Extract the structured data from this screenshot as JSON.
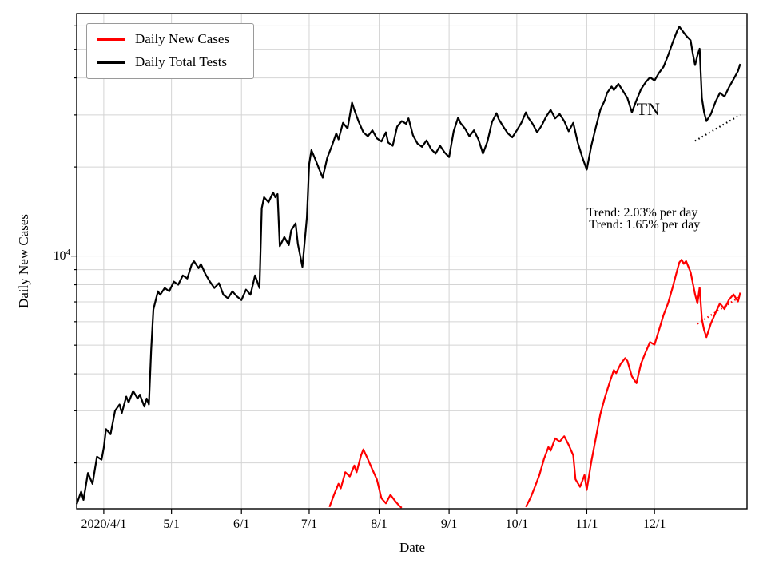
{
  "figure": {
    "ylabel": "Daily New Cases",
    "xlabel": "Date",
    "y_tick": {
      "base": "10",
      "exp": "4"
    }
  },
  "chart_data": {
    "type": "line",
    "title": "",
    "xlabel": "Date",
    "ylabel": "Daily New Cases",
    "y_scale": "log",
    "grid": true,
    "legend_position": "upper left",
    "ylim": [
      1400,
      66000
    ],
    "x_range": [
      "2020-03-20",
      "2021-01-11"
    ],
    "x_ticks": [
      {
        "date": "2020-04-01",
        "label": "2020/4/1"
      },
      {
        "date": "2020-05-01",
        "label": "5/1"
      },
      {
        "date": "2020-06-01",
        "label": "6/1"
      },
      {
        "date": "2020-07-01",
        "label": "7/1"
      },
      {
        "date": "2020-08-01",
        "label": "8/1"
      },
      {
        "date": "2020-09-01",
        "label": "9/1"
      },
      {
        "date": "2020-10-01",
        "label": "10/1"
      },
      {
        "date": "2020-11-01",
        "label": "11/1"
      },
      {
        "date": "2020-12-01",
        "label": "12/1"
      }
    ],
    "y_gridlines": [
      2000,
      3000,
      4000,
      5000,
      6000,
      7000,
      8000,
      9000,
      10000,
      20000,
      30000,
      40000,
      50000,
      60000
    ],
    "series": [
      {
        "name": "Daily New Cases",
        "color": "#ff0000",
        "points": [
          [
            "2020-07-10",
            1420
          ],
          [
            "2020-07-12",
            1560
          ],
          [
            "2020-07-14",
            1700
          ],
          [
            "2020-07-15",
            1640
          ],
          [
            "2020-07-17",
            1860
          ],
          [
            "2020-07-19",
            1800
          ],
          [
            "2020-07-21",
            1960
          ],
          [
            "2020-07-22",
            1860
          ],
          [
            "2020-07-24",
            2120
          ],
          [
            "2020-07-25",
            2220
          ],
          [
            "2020-07-27",
            2060
          ],
          [
            "2020-07-29",
            1900
          ],
          [
            "2020-07-31",
            1760
          ],
          [
            "2020-08-02",
            1520
          ],
          [
            "2020-08-04",
            1460
          ],
          [
            "2020-08-06",
            1560
          ],
          [
            "2020-08-08",
            1490
          ],
          [
            "2020-08-10",
            1430
          ],
          [
            "2020-08-11",
            1410
          ],
          [
            "2020-08-12",
            null
          ],
          [
            "2020-10-05",
            1420
          ],
          [
            "2020-10-07",
            1520
          ],
          [
            "2020-10-09",
            1660
          ],
          [
            "2020-10-11",
            1820
          ],
          [
            "2020-10-13",
            2060
          ],
          [
            "2020-10-15",
            2260
          ],
          [
            "2020-10-16",
            2200
          ],
          [
            "2020-10-18",
            2420
          ],
          [
            "2020-10-20",
            2360
          ],
          [
            "2020-10-22",
            2460
          ],
          [
            "2020-10-24",
            2300
          ],
          [
            "2020-10-26",
            2120
          ],
          [
            "2020-10-27",
            1760
          ],
          [
            "2020-10-29",
            1660
          ],
          [
            "2020-10-31",
            1820
          ],
          [
            "2020-11-01",
            1620
          ],
          [
            "2020-11-03",
            2020
          ],
          [
            "2020-11-05",
            2420
          ],
          [
            "2020-11-07",
            2920
          ],
          [
            "2020-11-09",
            3320
          ],
          [
            "2020-11-11",
            3720
          ],
          [
            "2020-11-13",
            4120
          ],
          [
            "2020-11-14",
            4020
          ],
          [
            "2020-11-16",
            4320
          ],
          [
            "2020-11-18",
            4520
          ],
          [
            "2020-11-19",
            4420
          ],
          [
            "2020-11-21",
            3920
          ],
          [
            "2020-11-23",
            3720
          ],
          [
            "2020-11-25",
            4320
          ],
          [
            "2020-11-27",
            4720
          ],
          [
            "2020-11-29",
            5120
          ],
          [
            "2020-12-01",
            5020
          ],
          [
            "2020-12-03",
            5620
          ],
          [
            "2020-12-05",
            6320
          ],
          [
            "2020-12-07",
            6920
          ],
          [
            "2020-12-09",
            7820
          ],
          [
            "2020-12-11",
            8920
          ],
          [
            "2020-12-12",
            9520
          ],
          [
            "2020-12-13",
            9720
          ],
          [
            "2020-12-14",
            9420
          ],
          [
            "2020-12-15",
            9620
          ],
          [
            "2020-12-17",
            8820
          ],
          [
            "2020-12-19",
            7420
          ],
          [
            "2020-12-20",
            6920
          ],
          [
            "2020-12-21",
            7820
          ],
          [
            "2020-12-22",
            6120
          ],
          [
            "2020-12-23",
            5620
          ],
          [
            "2020-12-24",
            5320
          ],
          [
            "2020-12-26",
            5920
          ],
          [
            "2020-12-28",
            6420
          ],
          [
            "2020-12-30",
            6920
          ],
          [
            "2021-01-01",
            6620
          ],
          [
            "2021-01-03",
            7120
          ],
          [
            "2021-01-05",
            7420
          ],
          [
            "2021-01-07",
            7020
          ],
          [
            "2021-01-08",
            7520
          ]
        ]
      },
      {
        "name": "Daily Total Tests",
        "color": "#000000",
        "points": [
          [
            "2020-03-20",
            1450
          ],
          [
            "2020-03-22",
            1600
          ],
          [
            "2020-03-23",
            1500
          ],
          [
            "2020-03-25",
            1850
          ],
          [
            "2020-03-27",
            1700
          ],
          [
            "2020-03-29",
            2100
          ],
          [
            "2020-03-31",
            2050
          ],
          [
            "2020-04-01",
            2250
          ],
          [
            "2020-04-02",
            2600
          ],
          [
            "2020-04-04",
            2500
          ],
          [
            "2020-04-06",
            3000
          ],
          [
            "2020-04-08",
            3150
          ],
          [
            "2020-04-09",
            2950
          ],
          [
            "2020-04-11",
            3350
          ],
          [
            "2020-04-12",
            3200
          ],
          [
            "2020-04-14",
            3500
          ],
          [
            "2020-04-16",
            3300
          ],
          [
            "2020-04-17",
            3400
          ],
          [
            "2020-04-19",
            3100
          ],
          [
            "2020-04-20",
            3300
          ],
          [
            "2020-04-21",
            3150
          ],
          [
            "2020-04-22",
            4800
          ],
          [
            "2020-04-23",
            6600
          ],
          [
            "2020-04-25",
            7600
          ],
          [
            "2020-04-26",
            7400
          ],
          [
            "2020-04-28",
            7800
          ],
          [
            "2020-04-30",
            7600
          ],
          [
            "2020-05-02",
            8200
          ],
          [
            "2020-05-04",
            8000
          ],
          [
            "2020-05-06",
            8600
          ],
          [
            "2020-05-08",
            8400
          ],
          [
            "2020-05-10",
            9400
          ],
          [
            "2020-05-11",
            9600
          ],
          [
            "2020-05-13",
            9100
          ],
          [
            "2020-05-14",
            9400
          ],
          [
            "2020-05-16",
            8700
          ],
          [
            "2020-05-18",
            8200
          ],
          [
            "2020-05-20",
            7800
          ],
          [
            "2020-05-22",
            8100
          ],
          [
            "2020-05-24",
            7400
          ],
          [
            "2020-05-26",
            7200
          ],
          [
            "2020-05-28",
            7600
          ],
          [
            "2020-05-30",
            7300
          ],
          [
            "2020-06-01",
            7100
          ],
          [
            "2020-06-03",
            7700
          ],
          [
            "2020-06-05",
            7400
          ],
          [
            "2020-06-07",
            8600
          ],
          [
            "2020-06-08",
            8200
          ],
          [
            "2020-06-09",
            7800
          ],
          [
            "2020-06-10",
            14500
          ],
          [
            "2020-06-11",
            15800
          ],
          [
            "2020-06-13",
            15200
          ],
          [
            "2020-06-15",
            16400
          ],
          [
            "2020-06-16",
            15800
          ],
          [
            "2020-06-17",
            16200
          ],
          [
            "2020-06-18",
            10800
          ],
          [
            "2020-06-20",
            11600
          ],
          [
            "2020-06-22",
            10900
          ],
          [
            "2020-06-23",
            12200
          ],
          [
            "2020-06-25",
            12900
          ],
          [
            "2020-06-26",
            11000
          ],
          [
            "2020-06-28",
            9200
          ],
          [
            "2020-06-30",
            13500
          ],
          [
            "2020-07-01",
            20500
          ],
          [
            "2020-07-02",
            22800
          ],
          [
            "2020-07-04",
            21000
          ],
          [
            "2020-07-06",
            19200
          ],
          [
            "2020-07-07",
            18400
          ],
          [
            "2020-07-09",
            21500
          ],
          [
            "2020-07-11",
            23500
          ],
          [
            "2020-07-13",
            26000
          ],
          [
            "2020-07-14",
            24800
          ],
          [
            "2020-07-16",
            28200
          ],
          [
            "2020-07-18",
            27000
          ],
          [
            "2020-07-19",
            29800
          ],
          [
            "2020-07-20",
            33000
          ],
          [
            "2020-07-21",
            31200
          ],
          [
            "2020-07-23",
            28400
          ],
          [
            "2020-07-25",
            26200
          ],
          [
            "2020-07-27",
            25400
          ],
          [
            "2020-07-29",
            26600
          ],
          [
            "2020-07-31",
            25000
          ],
          [
            "2020-08-02",
            24400
          ],
          [
            "2020-08-04",
            26200
          ],
          [
            "2020-08-05",
            24200
          ],
          [
            "2020-08-07",
            23600
          ],
          [
            "2020-08-09",
            27400
          ],
          [
            "2020-08-11",
            28600
          ],
          [
            "2020-08-13",
            28000
          ],
          [
            "2020-08-14",
            29200
          ],
          [
            "2020-08-16",
            25600
          ],
          [
            "2020-08-18",
            24000
          ],
          [
            "2020-08-20",
            23400
          ],
          [
            "2020-08-22",
            24600
          ],
          [
            "2020-08-24",
            23000
          ],
          [
            "2020-08-26",
            22200
          ],
          [
            "2020-08-28",
            23600
          ],
          [
            "2020-08-30",
            22400
          ],
          [
            "2020-09-01",
            21600
          ],
          [
            "2020-09-03",
            26400
          ],
          [
            "2020-09-05",
            29400
          ],
          [
            "2020-09-06",
            28200
          ],
          [
            "2020-09-08",
            27000
          ],
          [
            "2020-09-10",
            25400
          ],
          [
            "2020-09-12",
            26600
          ],
          [
            "2020-09-14",
            24800
          ],
          [
            "2020-09-16",
            22200
          ],
          [
            "2020-09-18",
            24400
          ],
          [
            "2020-09-20",
            28400
          ],
          [
            "2020-09-22",
            30400
          ],
          [
            "2020-09-23",
            29000
          ],
          [
            "2020-09-25",
            27400
          ],
          [
            "2020-09-27",
            26000
          ],
          [
            "2020-09-29",
            25200
          ],
          [
            "2020-10-01",
            26600
          ],
          [
            "2020-10-03",
            28200
          ],
          [
            "2020-10-05",
            30600
          ],
          [
            "2020-10-06",
            29400
          ],
          [
            "2020-10-08",
            28000
          ],
          [
            "2020-10-10",
            26200
          ],
          [
            "2020-10-12",
            27600
          ],
          [
            "2020-10-14",
            29600
          ],
          [
            "2020-10-16",
            31200
          ],
          [
            "2020-10-18",
            29200
          ],
          [
            "2020-10-20",
            30200
          ],
          [
            "2020-10-22",
            28600
          ],
          [
            "2020-10-24",
            26400
          ],
          [
            "2020-10-26",
            28200
          ],
          [
            "2020-10-28",
            24200
          ],
          [
            "2020-10-30",
            21600
          ],
          [
            "2020-11-01",
            19600
          ],
          [
            "2020-11-03",
            23600
          ],
          [
            "2020-11-05",
            27200
          ],
          [
            "2020-11-07",
            31200
          ],
          [
            "2020-11-09",
            33600
          ],
          [
            "2020-11-10",
            35600
          ],
          [
            "2020-11-12",
            37400
          ],
          [
            "2020-11-13",
            36400
          ],
          [
            "2020-11-15",
            38200
          ],
          [
            "2020-11-17",
            36200
          ],
          [
            "2020-11-19",
            34200
          ],
          [
            "2020-11-21",
            30600
          ],
          [
            "2020-11-23",
            33600
          ],
          [
            "2020-11-25",
            36600
          ],
          [
            "2020-11-27",
            38600
          ],
          [
            "2020-11-29",
            40200
          ],
          [
            "2020-12-01",
            39200
          ],
          [
            "2020-12-03",
            41600
          ],
          [
            "2020-12-05",
            43600
          ],
          [
            "2020-12-07",
            47600
          ],
          [
            "2020-12-09",
            52600
          ],
          [
            "2020-12-11",
            57600
          ],
          [
            "2020-12-12",
            59600
          ],
          [
            "2020-12-13",
            58200
          ],
          [
            "2020-12-15",
            55600
          ],
          [
            "2020-12-17",
            53600
          ],
          [
            "2020-12-18",
            48200
          ],
          [
            "2020-12-19",
            44200
          ],
          [
            "2020-12-20",
            47600
          ],
          [
            "2020-12-21",
            50200
          ],
          [
            "2020-12-22",
            34200
          ],
          [
            "2020-12-23",
            30600
          ],
          [
            "2020-12-24",
            28600
          ],
          [
            "2020-12-26",
            30200
          ],
          [
            "2020-12-28",
            33200
          ],
          [
            "2020-12-30",
            35600
          ],
          [
            "2021-01-01",
            34600
          ],
          [
            "2021-01-03",
            37200
          ],
          [
            "2021-01-05",
            39600
          ],
          [
            "2021-01-07",
            42200
          ],
          [
            "2021-01-08",
            44600
          ]
        ]
      }
    ],
    "trend_lines": [
      {
        "name": "tests-trend",
        "color": "#000000",
        "from": [
          "2020-12-19",
          24500
        ],
        "to": [
          "2021-01-08",
          30000
        ]
      },
      {
        "name": "cases-trend",
        "color": "#ff0000",
        "from": [
          "2020-12-20",
          5900
        ],
        "to": [
          "2021-01-08",
          7300
        ]
      }
    ],
    "annotations": [
      {
        "text": "Trend: 2.03% per day",
        "date": "2020-11-01",
        "value": 13600,
        "size": 16
      },
      {
        "text": "Trend: 1.65% per day",
        "date": "2020-11-02",
        "value": 12400,
        "size": 16
      },
      {
        "text": "TN",
        "date": "2020-11-23",
        "value": 30000,
        "size": 22
      }
    ]
  }
}
